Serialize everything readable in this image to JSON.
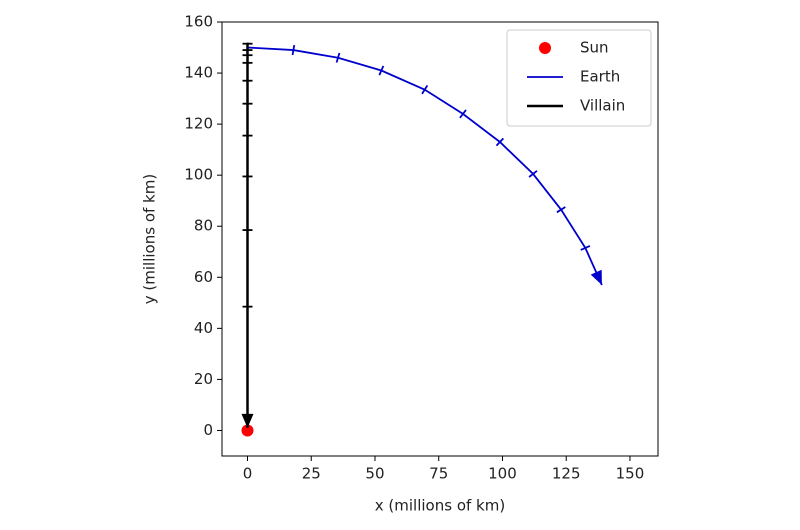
{
  "chart_data": {
    "type": "line",
    "xlabel": "x (millions of km)",
    "ylabel": "y (millions of km)",
    "xlim": [
      -10,
      161
    ],
    "ylim": [
      -10,
      160
    ],
    "xticks": [
      0,
      25,
      50,
      75,
      100,
      125,
      150
    ],
    "yticks": [
      0,
      20,
      40,
      60,
      80,
      100,
      120,
      140,
      160
    ],
    "legend": "upper right",
    "series": [
      {
        "name": "Sun",
        "type": "scatter",
        "color": "#ff0000",
        "x": [
          0
        ],
        "values": [
          0
        ]
      },
      {
        "name": "Earth",
        "type": "line",
        "color": "#0000cc",
        "x": [
          0,
          18,
          35.5,
          52.5,
          69.5,
          84.5,
          99,
          112,
          123,
          132.5,
          139
        ],
        "values": [
          150,
          149,
          146,
          141,
          133.5,
          124,
          113,
          100.5,
          86.5,
          71.5,
          57
        ]
      },
      {
        "name": "Villain",
        "type": "line",
        "color": "#000000",
        "x": [
          0,
          0,
          0,
          0,
          0,
          0,
          0,
          0,
          0,
          0,
          0
        ],
        "values": [
          151.5,
          149,
          147,
          144,
          137,
          128,
          115.5,
          99.5,
          78.5,
          48.5,
          1
        ]
      }
    ]
  }
}
